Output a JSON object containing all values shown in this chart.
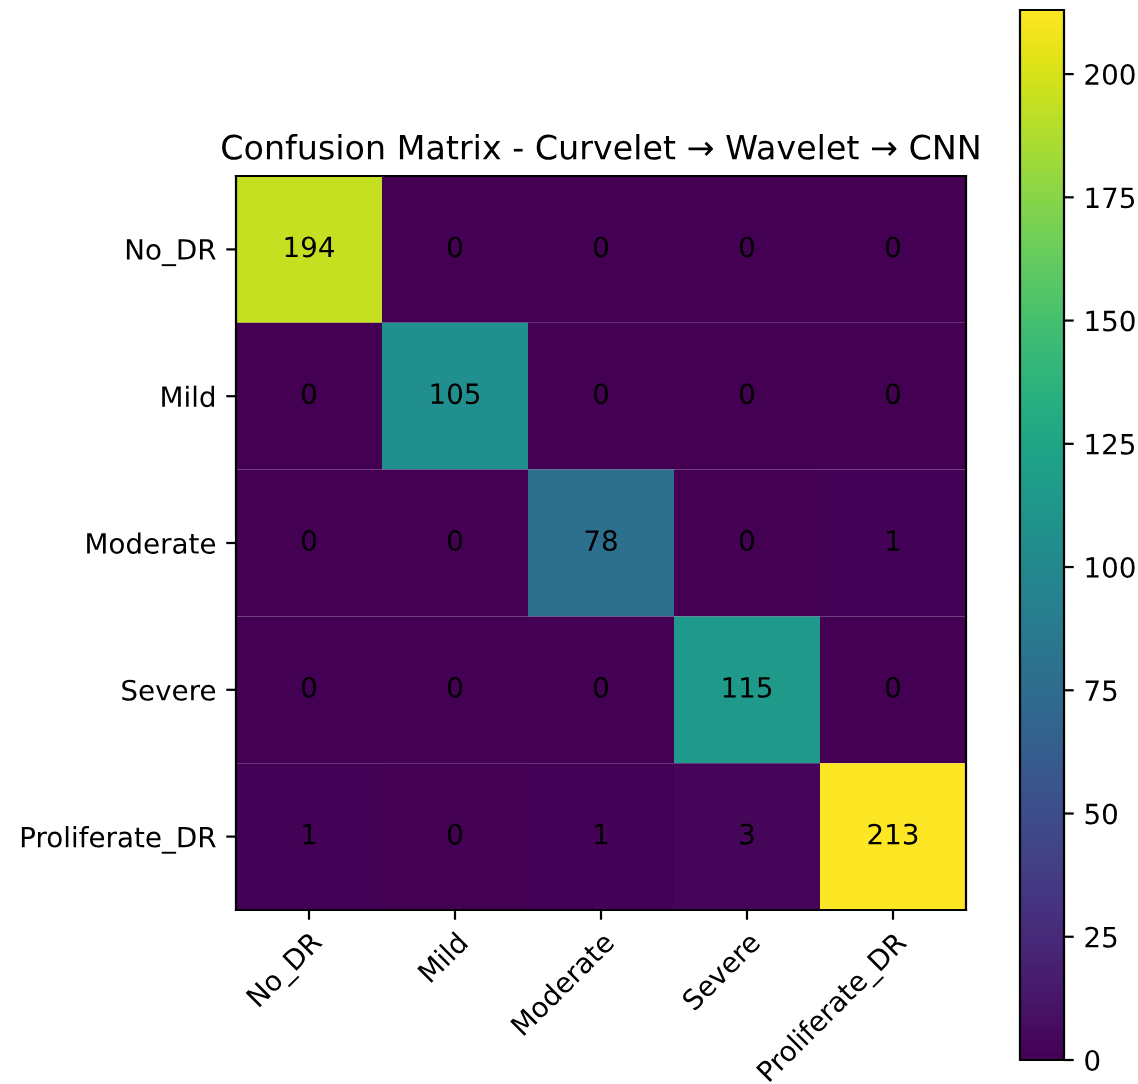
{
  "chart_data": {
    "type": "heatmap",
    "title": "Confusion Matrix - Curvelet → Wavelet → CNN",
    "categories": [
      "No_DR",
      "Mild",
      "Moderate",
      "Severe",
      "Proliferate_DR"
    ],
    "y_categories": [
      "No_DR",
      "Mild",
      "Moderate",
      "Severe",
      "Proliferate_DR"
    ],
    "cells": [
      [
        194,
        0,
        0,
        0,
        0
      ],
      [
        0,
        105,
        0,
        0,
        0
      ],
      [
        0,
        0,
        78,
        0,
        1
      ],
      [
        0,
        0,
        0,
        115,
        0
      ],
      [
        1,
        0,
        1,
        3,
        213
      ]
    ],
    "clim": [
      0,
      213
    ],
    "cticks": [
      0,
      25,
      50,
      75,
      100,
      125,
      150,
      175,
      200
    ],
    "data_labels": true
  }
}
